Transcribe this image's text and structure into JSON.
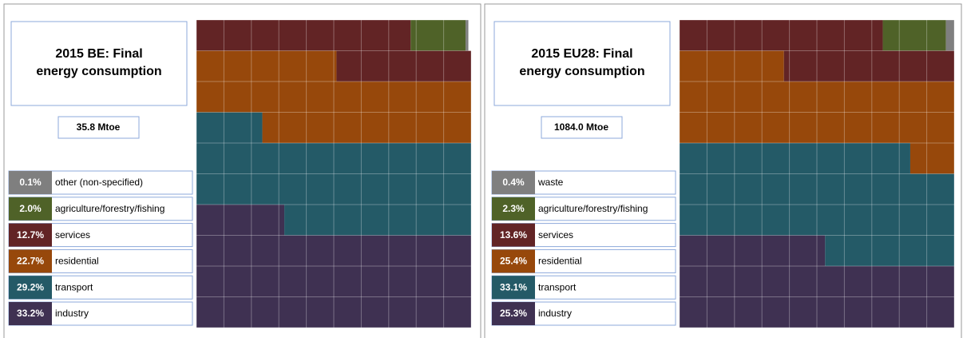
{
  "chart_data": [
    {
      "type": "waffle",
      "title": "2015 BE: Final energy consumption",
      "subtitle": "35.8 Mtoe",
      "series": [
        {
          "name": "industry",
          "color": "#3f3152",
          "values": [
            33.2
          ],
          "value_labels": [
            "33.2%"
          ]
        },
        {
          "name": "transport",
          "color": "#245a67",
          "values": [
            29.2
          ],
          "value_labels": [
            "29.2%"
          ]
        },
        {
          "name": "residential",
          "color": "#97480b",
          "values": [
            22.7
          ],
          "value_labels": [
            "22.7%"
          ]
        },
        {
          "name": "services",
          "color": "#622425",
          "values": [
            12.7
          ],
          "value_labels": [
            "12.7%"
          ]
        },
        {
          "name": "agriculture/forestry/fishing",
          "color": "#4f6228",
          "values": [
            2.0
          ],
          "value_labels": [
            "2.0%"
          ]
        },
        {
          "name": "other (non-specified)",
          "color": "#7f7f7f",
          "values": [
            0.1
          ],
          "value_labels": [
            "0.1%"
          ]
        }
      ]
    },
    {
      "type": "waffle",
      "title": "2015 EU28: Final energy consumption",
      "subtitle": "1084.0 Mtoe",
      "series": [
        {
          "name": "industry",
          "color": "#3f3152",
          "values": [
            25.3
          ],
          "value_labels": [
            "25.3%"
          ]
        },
        {
          "name": "transport",
          "color": "#245a67",
          "values": [
            33.1
          ],
          "value_labels": [
            "33.1%"
          ]
        },
        {
          "name": "residential",
          "color": "#97480b",
          "values": [
            25.4
          ],
          "value_labels": [
            "25.4%"
          ]
        },
        {
          "name": "services",
          "color": "#622425",
          "values": [
            13.6
          ],
          "value_labels": [
            "13.6%"
          ]
        },
        {
          "name": "agriculture/forestry/fishing",
          "color": "#4f6228",
          "values": [
            2.3
          ],
          "value_labels": [
            "2.3%"
          ]
        },
        {
          "name": "waste",
          "color": "#7f7f7f",
          "values": [
            0.4
          ],
          "value_labels": [
            "0.4%"
          ]
        }
      ]
    }
  ]
}
